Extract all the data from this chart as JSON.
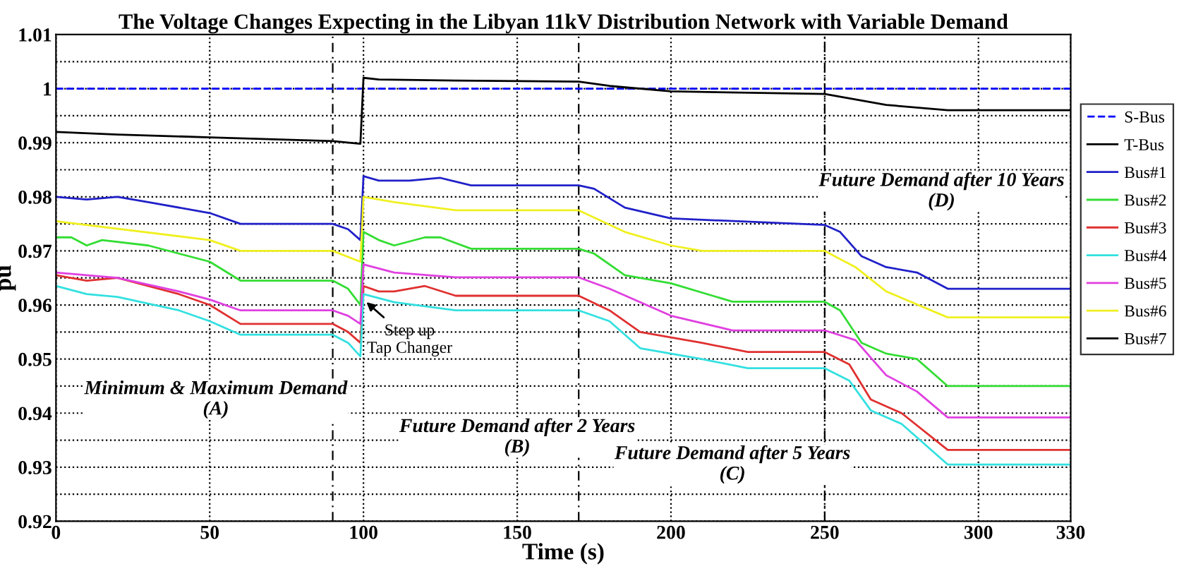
{
  "chart_data": {
    "type": "line",
    "title": "The Voltage Changes Expecting in the Libyan 11kV Distribution Network with Variable Demand",
    "xlabel": "Time (s)",
    "ylabel": "pu",
    "xlim": [
      0,
      330
    ],
    "xticks": [
      0,
      50,
      100,
      150,
      200,
      250,
      300,
      330
    ],
    "ylim": [
      0.92,
      1.01
    ],
    "yticks": [
      0.92,
      {
        "value": 0.925,
        "label": null
      },
      0.93,
      {
        "value": 0.935,
        "label": null
      },
      0.94,
      {
        "value": 0.945,
        "label": null
      },
      0.95,
      {
        "value": 0.955,
        "label": null
      },
      0.96,
      {
        "value": 0.965,
        "label": null
      },
      0.97,
      {
        "value": 0.975,
        "label": null
      },
      0.98,
      {
        "value": 0.985,
        "label": null
      },
      0.99,
      {
        "value": 0.995,
        "label": null
      },
      1,
      {
        "value": 1.005,
        "label": null
      },
      1.01
    ],
    "grid": true,
    "legend": "right",
    "marker": "none",
    "line_style": "solid",
    "ref_lines": [
      {
        "axis": "x",
        "value": 90,
        "label": null,
        "color": "#000000",
        "line_style": "dashed"
      },
      {
        "axis": "x",
        "value": 170,
        "label": null,
        "color": "#000000",
        "line_style": "dashed"
      },
      {
        "axis": "x",
        "value": 250,
        "label": null,
        "color": "#000000",
        "line_style": "dashed"
      }
    ],
    "annotations": [
      "Minimum & Maximum Demand\n(A)",
      "Future Demand after 2 Years\n(B)",
      "Future Demand after 5 Years\n(C)",
      "Future Demand after 10 Years\n(D)",
      {
        "text": "Step up\nTap Changer",
        "x": 100,
        "y": 0.961
      }
    ],
    "series": [
      {
        "name": "S-Bus",
        "color": "#0000ff",
        "line_style": "dashed",
        "x": [
          0,
          330
        ],
        "values": [
          1,
          1
        ]
      },
      {
        "name": "T-Bus",
        "color": "#000000",
        "x": [
          0,
          20,
          50,
          90,
          99,
          100,
          105,
          130,
          170,
          180,
          200,
          250,
          270,
          290,
          330
        ],
        "values": [
          0.992,
          0.9915,
          0.991,
          0.9903,
          0.9898,
          1.002,
          1.0017,
          1.0015,
          1.0013,
          1.0005,
          0.9995,
          0.999,
          0.997,
          0.996,
          0.996
        ]
      },
      {
        "name": "Bus#1",
        "color": "#2020c8",
        "x": [
          0,
          10,
          20,
          30,
          50,
          60,
          90,
          95,
          99,
          100,
          105,
          115,
          125,
          135,
          170,
          175,
          185,
          200,
          250,
          255,
          262,
          270,
          280,
          290,
          330
        ],
        "values": [
          0.98,
          0.9795,
          0.98,
          0.979,
          0.977,
          0.975,
          0.975,
          0.974,
          0.972,
          0.9838,
          0.983,
          0.983,
          0.9835,
          0.9821,
          0.9821,
          0.9815,
          0.978,
          0.976,
          0.9748,
          0.9735,
          0.969,
          0.967,
          0.966,
          0.963,
          0.963
        ]
      },
      {
        "name": "Bus#2",
        "color": "#33dd33",
        "x": [
          0,
          5,
          10,
          15,
          30,
          50,
          60,
          90,
          95,
          99,
          100,
          105,
          110,
          120,
          125,
          135,
          170,
          175,
          185,
          200,
          220,
          250,
          255,
          262,
          270,
          280,
          290,
          330
        ],
        "values": [
          0.9725,
          0.9725,
          0.971,
          0.972,
          0.971,
          0.968,
          0.9645,
          0.9645,
          0.963,
          0.96,
          0.9735,
          0.972,
          0.971,
          0.9725,
          0.9725,
          0.9704,
          0.9704,
          0.9695,
          0.9655,
          0.964,
          0.9606,
          0.9606,
          0.959,
          0.953,
          0.951,
          0.95,
          0.945,
          0.945
        ]
      },
      {
        "name": "Bus#3",
        "color": "#e03030",
        "x": [
          0,
          10,
          20,
          40,
          50,
          60,
          90,
          95,
          99,
          100,
          105,
          110,
          120,
          130,
          170,
          180,
          190,
          210,
          225,
          250,
          258,
          265,
          275,
          290,
          330
        ],
        "values": [
          0.9655,
          0.9645,
          0.965,
          0.962,
          0.96,
          0.9565,
          0.9565,
          0.955,
          0.953,
          0.9635,
          0.9625,
          0.9625,
          0.9635,
          0.9617,
          0.9617,
          0.959,
          0.955,
          0.953,
          0.9513,
          0.9513,
          0.949,
          0.9425,
          0.94,
          0.9332,
          0.9332
        ]
      },
      {
        "name": "Bus#4",
        "color": "#33e0e0",
        "x": [
          0,
          10,
          20,
          40,
          50,
          60,
          90,
          95,
          99,
          100,
          110,
          130,
          170,
          180,
          190,
          210,
          225,
          250,
          258,
          265,
          275,
          290,
          330
        ],
        "values": [
          0.9635,
          0.962,
          0.9615,
          0.959,
          0.957,
          0.9545,
          0.9545,
          0.953,
          0.9505,
          0.962,
          0.9605,
          0.959,
          0.959,
          0.957,
          0.952,
          0.95,
          0.9483,
          0.9483,
          0.946,
          0.9405,
          0.938,
          0.9305,
          0.9305
        ]
      },
      {
        "name": "Bus#5",
        "color": "#e040e0",
        "x": [
          0,
          10,
          20,
          40,
          50,
          60,
          90,
          95,
          99,
          100,
          110,
          130,
          170,
          180,
          200,
          220,
          250,
          260,
          270,
          280,
          290,
          330
        ],
        "values": [
          0.966,
          0.9655,
          0.965,
          0.9625,
          0.961,
          0.959,
          0.959,
          0.958,
          0.9565,
          0.9675,
          0.966,
          0.9651,
          0.9651,
          0.963,
          0.958,
          0.9553,
          0.9553,
          0.9535,
          0.947,
          0.944,
          0.9392,
          0.9392
        ]
      },
      {
        "name": "Bus#6",
        "color": "#f0f020",
        "x": [
          0,
          50,
          60,
          90,
          99,
          100,
          110,
          130,
          170,
          185,
          200,
          210,
          250,
          260,
          270,
          290,
          330
        ],
        "values": [
          0.9755,
          0.972,
          0.97,
          0.97,
          0.968,
          0.98,
          0.979,
          0.9775,
          0.9775,
          0.9735,
          0.971,
          0.97,
          0.97,
          0.967,
          0.9625,
          0.9577,
          0.9577
        ]
      },
      {
        "name": "Bus#7",
        "color": "#000000"
      }
    ]
  }
}
